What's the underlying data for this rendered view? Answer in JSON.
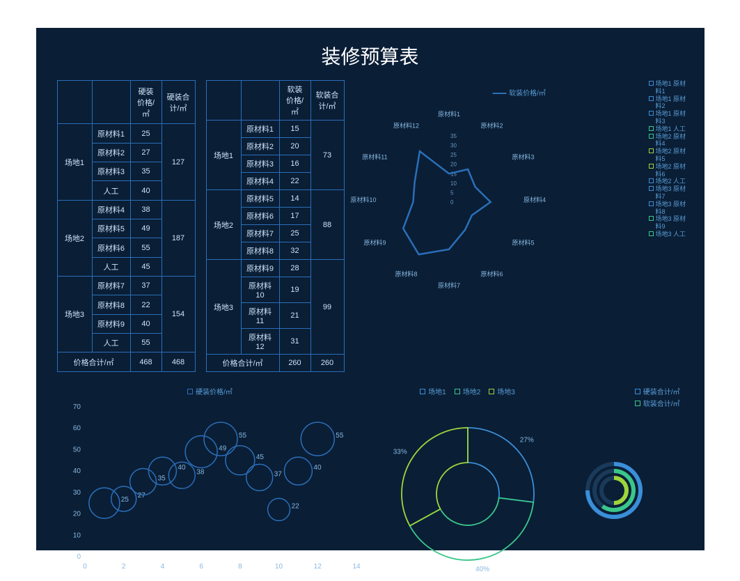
{
  "title": "装修预算表",
  "colors": {
    "bg": "#0a1e36",
    "border": "#2a6fb8",
    "text": "#cde4f7",
    "accent_blue": "#3a8fd8",
    "accent_green": "#3ac78a",
    "accent_cyan": "#3ad6d6"
  },
  "table_hard": {
    "headers": [
      "",
      "",
      "硬装价格/㎡",
      "硬装合计/㎡"
    ],
    "groups": [
      {
        "site": "场地1",
        "rows": [
          [
            "原材料1",
            "25"
          ],
          [
            "原材料2",
            "27"
          ],
          [
            "原材料3",
            "35"
          ],
          [
            "人工",
            "40"
          ]
        ],
        "sum": "127"
      },
      {
        "site": "场地2",
        "rows": [
          [
            "原材料4",
            "38"
          ],
          [
            "原材料5",
            "49"
          ],
          [
            "原材料6",
            "55"
          ],
          [
            "人工",
            "45"
          ]
        ],
        "sum": "187"
      },
      {
        "site": "场地3",
        "rows": [
          [
            "原材料7",
            "37"
          ],
          [
            "原材料8",
            "22"
          ],
          [
            "原材料9",
            "40"
          ],
          [
            "人工",
            "55"
          ]
        ],
        "sum": "154"
      }
    ],
    "footer": [
      "价格合计/㎡",
      "468",
      "468"
    ]
  },
  "table_soft": {
    "headers": [
      "",
      "",
      "软装价格/㎡",
      "软装合计/㎡"
    ],
    "groups": [
      {
        "site": "场地1",
        "rows": [
          [
            "原材料1",
            "15"
          ],
          [
            "原材料2",
            "20"
          ],
          [
            "原材料3",
            "16"
          ],
          [
            "原材料4",
            "22"
          ]
        ],
        "sum": "73"
      },
      {
        "site": "场地2",
        "rows": [
          [
            "原材料5",
            "14"
          ],
          [
            "原材料6",
            "17"
          ],
          [
            "原材料7",
            "25"
          ],
          [
            "原材料8",
            "32"
          ]
        ],
        "sum": "88"
      },
      {
        "site": "场地3",
        "rows": [
          [
            "原材料9",
            "28"
          ],
          [
            "原材料10",
            "19"
          ],
          [
            "原材料11",
            "21"
          ],
          [
            "原材料12",
            "31"
          ]
        ],
        "sum": "99"
      }
    ],
    "footer": [
      "价格合计/㎡",
      "260",
      "260"
    ]
  },
  "radar": {
    "legend": "软装价格/㎡",
    "labels": [
      "原材料1",
      "原材料2",
      "原材料3",
      "原材料4",
      "原材料5",
      "原材料6",
      "原材料7",
      "原材料8",
      "原材料9",
      "原材料10",
      "原材料11",
      "原材料12"
    ],
    "values": [
      15,
      20,
      16,
      22,
      14,
      17,
      25,
      32,
      28,
      19,
      21,
      31
    ],
    "max": 35,
    "ticks": [
      0,
      5,
      10,
      15,
      20,
      25,
      30,
      35
    ],
    "line_color": "#2a6fb8"
  },
  "side_legend": [
    {
      "c": "#3a8fd8",
      "t": "场地1 原材料1"
    },
    {
      "c": "#3a8fd8",
      "t": "场地1 原材料2"
    },
    {
      "c": "#3a8fd8",
      "t": "场地1 原材料3"
    },
    {
      "c": "#3ac78a",
      "t": "场地1 人工"
    },
    {
      "c": "#3ac78a",
      "t": "场地2 原材料4"
    },
    {
      "c": "#9ed63a",
      "t": "场地2 原材料5"
    },
    {
      "c": "#9ed63a",
      "t": "场地2 原材料6"
    },
    {
      "c": "#3a8fd8",
      "t": "场地2 人工"
    },
    {
      "c": "#3a8fd8",
      "t": "场地3 原材料7"
    },
    {
      "c": "#3a8fd8",
      "t": "场地3 原材料8"
    },
    {
      "c": "#3ac78a",
      "t": "场地3 原材料9"
    },
    {
      "c": "#3ac78a",
      "t": "场地3 人工"
    }
  ],
  "bubble": {
    "legend": "硬装价格/㎡",
    "x_ticks": [
      0,
      2,
      4,
      6,
      8,
      10,
      12,
      14
    ],
    "y_ticks": [
      0,
      10,
      20,
      30,
      40,
      50,
      60,
      70
    ],
    "xlim": [
      0,
      14
    ],
    "ylim": [
      0,
      70
    ],
    "points": [
      {
        "x": 1,
        "y": 25,
        "r": 22,
        "l": "25"
      },
      {
        "x": 2,
        "y": 27,
        "r": 18,
        "l": "27"
      },
      {
        "x": 3,
        "y": 35,
        "r": 19,
        "l": "35"
      },
      {
        "x": 4,
        "y": 40,
        "r": 20,
        "l": "40"
      },
      {
        "x": 5,
        "y": 38,
        "r": 19,
        "l": "38"
      },
      {
        "x": 6,
        "y": 49,
        "r": 23,
        "l": "49"
      },
      {
        "x": 7,
        "y": 55,
        "r": 24,
        "l": "55"
      },
      {
        "x": 8,
        "y": 45,
        "r": 21,
        "l": "45"
      },
      {
        "x": 9,
        "y": 37,
        "r": 19,
        "l": "37"
      },
      {
        "x": 10,
        "y": 22,
        "r": 16,
        "l": "22"
      },
      {
        "x": 11,
        "y": 40,
        "r": 20,
        "l": "40"
      },
      {
        "x": 12,
        "y": 55,
        "r": 24,
        "l": "55"
      }
    ],
    "color": "#2a6fb8"
  },
  "pie": {
    "legend": [
      {
        "c": "#3a8fd8",
        "t": "场地1"
      },
      {
        "c": "#3ac78a",
        "t": "场地2"
      },
      {
        "c": "#9ed63a",
        "t": "场地3"
      }
    ],
    "slices": [
      {
        "pct": 27,
        "c": "#3a8fd8",
        "label": "27%"
      },
      {
        "pct": 40,
        "c": "#3ac78a",
        "label": "40%"
      },
      {
        "pct": 33,
        "c": "#9ed63a",
        "label": "33%"
      }
    ]
  },
  "donut": {
    "legend": [
      {
        "c": "#3a8fd8",
        "t": "硬装合计/㎡"
      },
      {
        "c": "#3ac78a",
        "t": "软装合计/㎡"
      }
    ]
  }
}
